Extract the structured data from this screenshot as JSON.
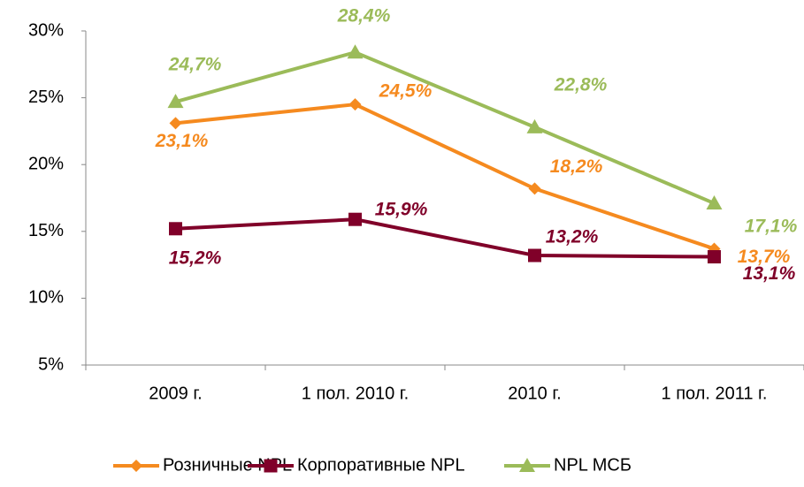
{
  "chart_data": {
    "type": "line",
    "categories": [
      "2009 г.",
      "1 пол. 2010 г.",
      "2010 г.",
      "1 пол. 2011 г."
    ],
    "series": [
      {
        "name": "Розничные NPL",
        "color": "#f58a1f",
        "marker": "diamond",
        "values": [
          23.1,
          24.5,
          18.2,
          13.7
        ],
        "value_labels": [
          "23,1%",
          "24,5%",
          "18,2%",
          "13,7%"
        ]
      },
      {
        "name": "Корпоративные NPL",
        "color": "#800029",
        "marker": "square",
        "values": [
          15.2,
          15.9,
          13.2,
          13.1
        ],
        "value_labels": [
          "15,2%",
          "15,9%",
          "13,2%",
          "13,1%"
        ]
      },
      {
        "name": "NPL МСБ",
        "color": "#9bbb59",
        "marker": "triangle",
        "values": [
          24.7,
          28.4,
          22.8,
          17.1
        ],
        "value_labels": [
          "24,7%",
          "28,4%",
          "22,8%",
          "17,1%"
        ]
      }
    ],
    "ylim": [
      5,
      30
    ],
    "yticks": [
      {
        "value": 5,
        "label": "5%"
      },
      {
        "value": 10,
        "label": "10%"
      },
      {
        "value": 15,
        "label": "15%"
      },
      {
        "value": 20,
        "label": "20%"
      },
      {
        "value": 25,
        "label": "25%"
      },
      {
        "value": 30,
        "label": "30%"
      }
    ],
    "grid": false,
    "legend": "bottom"
  }
}
